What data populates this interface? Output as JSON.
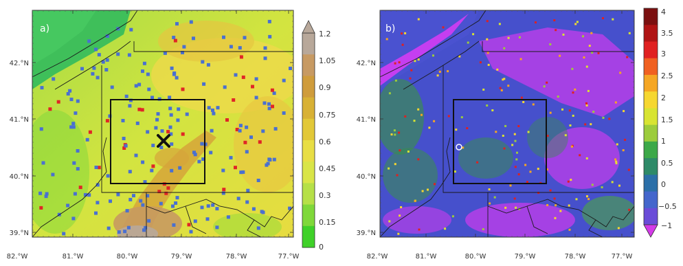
{
  "panels": [
    {
      "label": "a)",
      "colorbar": {
        "ticks": [
          "1.2",
          "1.05",
          "0.9",
          "0.75",
          "0.6",
          "0.45",
          "0.3",
          "0.15",
          "0"
        ],
        "colors": [
          "#b8a89a",
          "#c79a63",
          "#cf9c3c",
          "#d8b135",
          "#e2c838",
          "#e8de45",
          "#d9e548",
          "#b6e048",
          "#7fd83a",
          "#3fd128"
        ],
        "triangle_color": "#b8a89a"
      }
    },
    {
      "label": "b)",
      "colorbar": {
        "ticks": [
          "4",
          "3.5",
          "3",
          "2.5",
          "2",
          "1.5",
          "1",
          "0.5",
          "0",
          "−0.5",
          "−1"
        ],
        "colors": [
          "#7b1010",
          "#b01414",
          "#e02020",
          "#f06020",
          "#f5a623",
          "#f6d730",
          "#d8e432",
          "#9ccc3c",
          "#3ca848",
          "#2e8a68",
          "#2b6fa8",
          "#4466cc",
          "#6a4cd8"
        ],
        "triangle_color": "#d43ae8"
      }
    }
  ],
  "axes": {
    "x_ticks": [
      "82.°W",
      "81.°W",
      "80.°W",
      "79.°W",
      "78.°W",
      "77.°W"
    ],
    "y_ticks": [
      "42.°N",
      "41.°N",
      "40.°N",
      "39.°N"
    ]
  },
  "palette": {
    "panel_a_base": "#c6e23c",
    "panel_b_base": "#4650cc",
    "panel_b_purple": "#c53ef0",
    "panel_b_green": "#3b8a55",
    "station_blue": "#4a70d0",
    "station_red": "#e02626"
  },
  "markers": {
    "x_marker_symbol": "×"
  }
}
